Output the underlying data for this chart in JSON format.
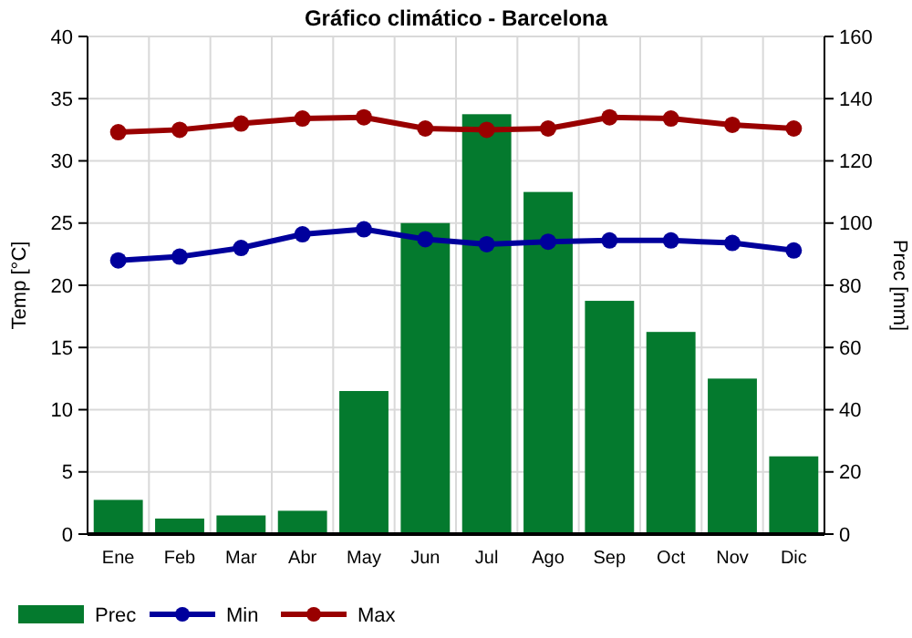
{
  "chart_data": {
    "type": "bar",
    "title": "Gráfico climático - Barcelona",
    "ylabel": "Temp [°C]",
    "y2label": "Prec [mm]",
    "categories": [
      "Ene",
      "Feb",
      "Mar",
      "Abr",
      "May",
      "Jun",
      "Jul",
      "Ago",
      "Sep",
      "Oct",
      "Nov",
      "Dic"
    ],
    "series": [
      {
        "name": "Prec",
        "axis": "y2",
        "color": "#047a2e",
        "values": [
          11,
          5,
          6,
          7.5,
          46,
          100,
          135,
          110,
          75,
          65,
          50,
          25
        ]
      },
      {
        "name": "Min",
        "type": "line",
        "color": "#00009c",
        "values": [
          22,
          22.3,
          23,
          24.1,
          24.5,
          23.7,
          23.3,
          23.5,
          23.6,
          23.6,
          23.4,
          22.8
        ]
      },
      {
        "name": "Max",
        "type": "line",
        "color": "#990000",
        "values": [
          32.3,
          32.5,
          33,
          33.4,
          33.5,
          32.6,
          32.5,
          32.6,
          33.5,
          33.4,
          32.9,
          32.6
        ]
      }
    ],
    "ylim": [
      0,
      40
    ],
    "yticks": [
      0,
      5,
      10,
      15,
      20,
      25,
      30,
      35,
      40
    ],
    "y2lim": [
      0,
      160
    ],
    "y2ticks": [
      0,
      20,
      40,
      60,
      80,
      100,
      120,
      140,
      160
    ],
    "grid": true,
    "legend": "bottom",
    "marker": "circle"
  }
}
